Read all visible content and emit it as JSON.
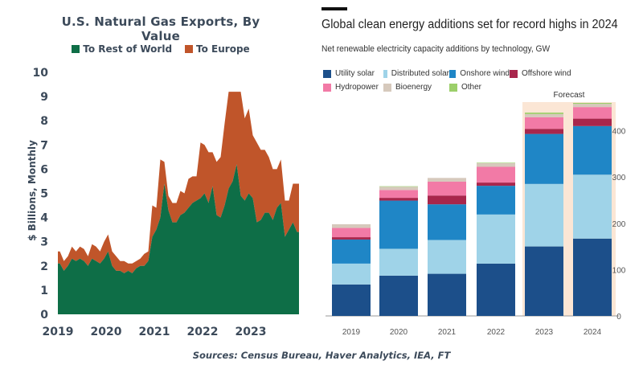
{
  "chart_data": [
    {
      "type": "area",
      "title": "U.S. Natural Gas Exports,  By Value",
      "ylabel": "$ Billions, Monthly",
      "xlabel": "",
      "ylim": [
        0,
        10
      ],
      "yticks": [
        "0",
        "1",
        "2",
        "3",
        "4",
        "5",
        "6",
        "7",
        "8",
        "9",
        "10"
      ],
      "xticks": [
        "2019",
        "2020",
        "2021",
        "2022",
        "2023"
      ],
      "stacked": true,
      "x": [
        "2019-01",
        "2019-02",
        "2019-03",
        "2019-04",
        "2019-05",
        "2019-06",
        "2019-07",
        "2019-08",
        "2019-09",
        "2019-10",
        "2019-11",
        "2019-12",
        "2020-01",
        "2020-02",
        "2020-03",
        "2020-04",
        "2020-05",
        "2020-06",
        "2020-07",
        "2020-08",
        "2020-09",
        "2020-10",
        "2020-11",
        "2020-12",
        "2021-01",
        "2021-02",
        "2021-03",
        "2021-04",
        "2021-05",
        "2021-06",
        "2021-07",
        "2021-08",
        "2021-09",
        "2021-10",
        "2021-11",
        "2021-12",
        "2022-01",
        "2022-02",
        "2022-03",
        "2022-04",
        "2022-05",
        "2022-06",
        "2022-07",
        "2022-08",
        "2022-09",
        "2022-10",
        "2022-11",
        "2022-12",
        "2023-01",
        "2023-02",
        "2023-03",
        "2023-04",
        "2023-05",
        "2023-06",
        "2023-07",
        "2023-08",
        "2023-09",
        "2023-10",
        "2023-11",
        "2023-12"
      ],
      "series": [
        {
          "name": "To Rest of World",
          "color": "#0e6e47",
          "values": [
            2.1,
            1.8,
            2.0,
            2.3,
            2.2,
            2.3,
            2.2,
            2.0,
            2.3,
            2.2,
            2.1,
            2.3,
            2.6,
            2.0,
            1.8,
            1.8,
            1.7,
            1.8,
            1.7,
            1.9,
            2.0,
            2.0,
            2.2,
            3.2,
            3.5,
            4.0,
            5.4,
            4.3,
            3.8,
            3.8,
            4.1,
            4.2,
            4.4,
            4.6,
            4.7,
            4.8,
            5.0,
            4.6,
            5.3,
            4.1,
            4.0,
            4.5,
            5.2,
            5.5,
            6.2,
            4.9,
            4.7,
            5.0,
            4.8,
            3.8,
            3.9,
            4.2,
            4.2,
            3.9,
            4.4,
            4.6,
            3.2,
            3.5,
            3.8,
            3.4
          ]
        },
        {
          "name": "To Europe",
          "color": "#c0552a",
          "values": [
            0.5,
            0.4,
            0.4,
            0.5,
            0.4,
            0.5,
            0.5,
            0.4,
            0.6,
            0.6,
            0.5,
            0.7,
            0.7,
            0.6,
            0.6,
            0.4,
            0.5,
            0.3,
            0.4,
            0.3,
            0.3,
            0.5,
            0.4,
            1.3,
            0.9,
            2.4,
            0.9,
            0.6,
            0.8,
            0.8,
            1.0,
            0.8,
            1.2,
            1.1,
            1.0,
            2.3,
            2.0,
            2.1,
            1.4,
            2.2,
            2.5,
            3.4,
            4.0,
            3.7,
            3.0,
            4.3,
            3.4,
            3.5,
            2.6,
            3.3,
            2.9,
            2.6,
            2.3,
            2.1,
            1.6,
            1.8,
            1.5,
            1.2,
            1.6,
            2.0
          ]
        }
      ],
      "legend_position": "top",
      "grid": false
    },
    {
      "type": "bar",
      "stacked": true,
      "title": "Global clean energy additions set for record highs in 2024",
      "subtitle": "Net renewable electricity capacity additions by technology, GW",
      "categories": [
        "2019",
        "2020",
        "2021",
        "2022",
        "2023",
        "2024"
      ],
      "ylim": [
        0,
        460
      ],
      "yticks": [
        "0",
        "100",
        "200",
        "300",
        "400"
      ],
      "y_axis_side": "right",
      "annotation": "Forecast",
      "series": [
        {
          "name": "Utility solar",
          "color": "#1c4f8a",
          "values": [
            68,
            87,
            91,
            113,
            150,
            167
          ]
        },
        {
          "name": "Distributed solar",
          "color": "#9fd3e8",
          "values": [
            45,
            58,
            73,
            106,
            135,
            138
          ]
        },
        {
          "name": "Onshore wind",
          "color": "#1f86c6",
          "values": [
            52,
            104,
            77,
            62,
            108,
            105
          ]
        },
        {
          "name": "Offshore wind",
          "color": "#a8264c",
          "values": [
            5,
            6,
            19,
            7,
            11,
            16
          ]
        },
        {
          "name": "Hydropower",
          "color": "#f27aa6",
          "values": [
            20,
            17,
            30,
            34,
            25,
            25
          ]
        },
        {
          "name": "Bioenergy",
          "color": "#d6c9bc",
          "values": [
            8,
            7,
            8,
            8,
            7,
            7
          ]
        },
        {
          "name": "Other",
          "color": "#9ccf6a",
          "values": [
            0,
            1,
            0,
            1,
            3,
            2
          ]
        }
      ],
      "legend_position": "top-left",
      "grid": false
    }
  ],
  "sources": "Sources: Census Bureau, Haver Analytics, IEA, FT"
}
